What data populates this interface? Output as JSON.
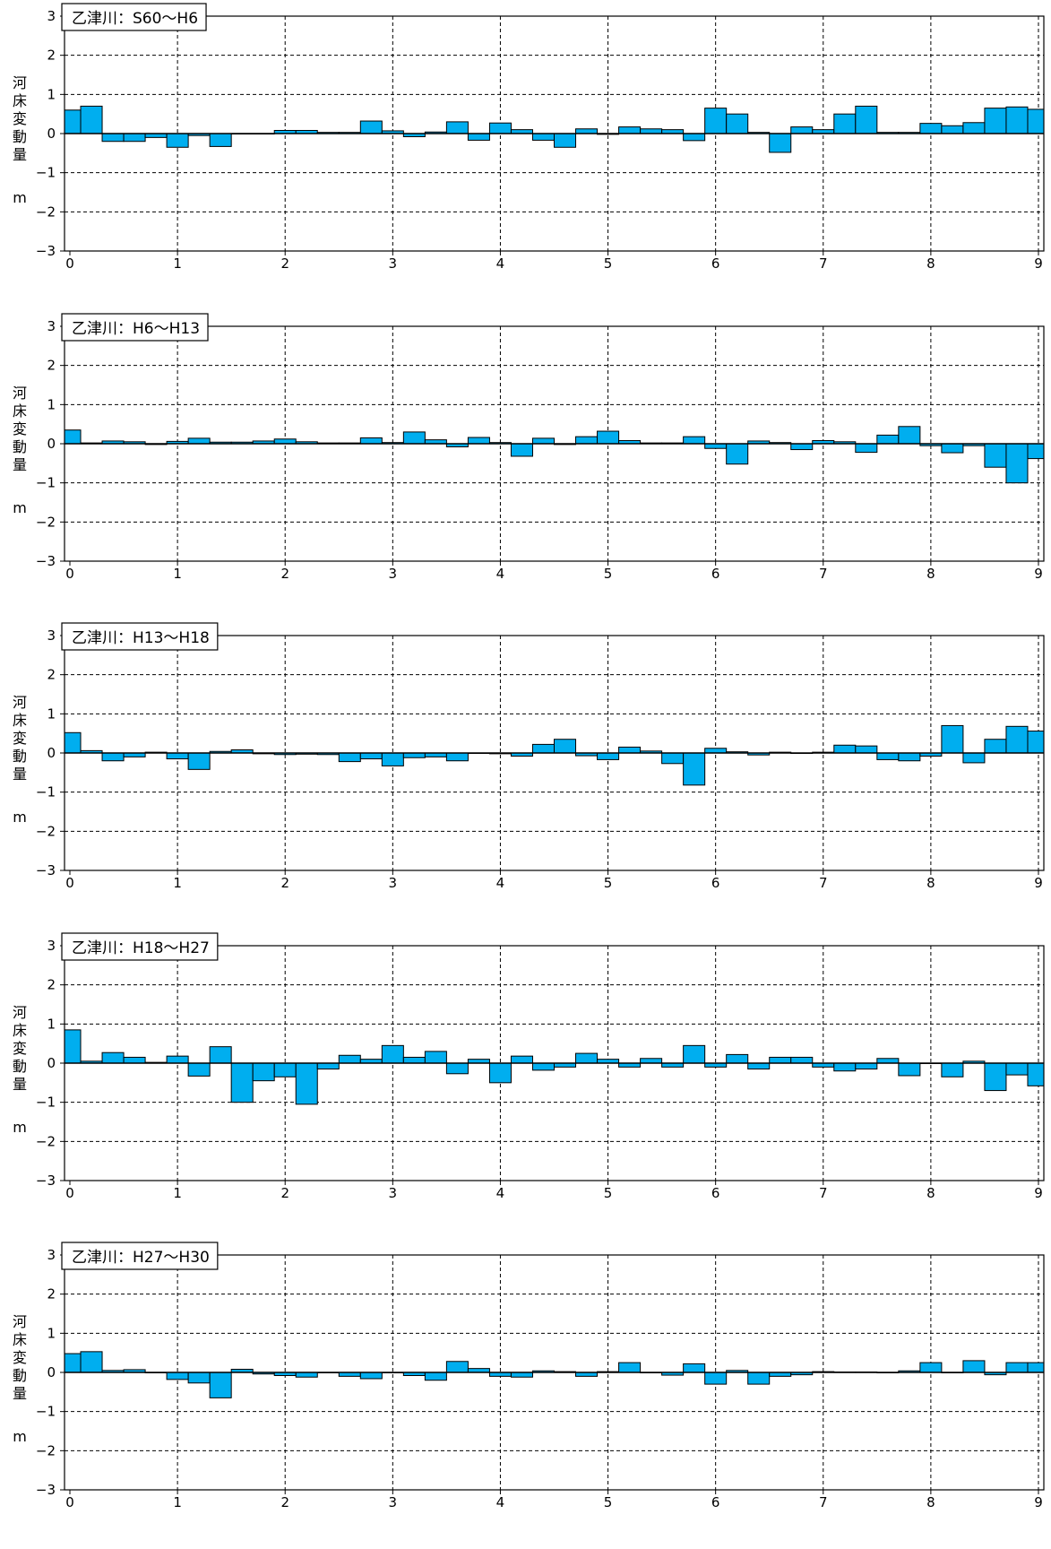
{
  "y_axis_label": "河床変動量",
  "y_axis_unit": "m",
  "colors": {
    "bar_fill": "#00AEEF",
    "bar_stroke": "#000000",
    "grid": "#000000"
  },
  "chart_data": [
    {
      "type": "bar",
      "title": "乙津川：S60～H6",
      "x_ticks": [
        "0",
        "1",
        "2",
        "3",
        "4",
        "5",
        "6",
        "7",
        "8",
        "9"
      ],
      "y_ticks": [
        "3",
        "2",
        "1",
        "0",
        "−1",
        "−2",
        "−3"
      ],
      "xlim": [
        -0.05,
        9.05
      ],
      "ylim": [
        -3,
        3
      ],
      "bar_width": 0.2,
      "x": [
        0.0,
        0.2,
        0.4,
        0.6,
        0.8,
        1.0,
        1.2,
        1.4,
        1.6,
        1.8,
        2.0,
        2.2,
        2.4,
        2.6,
        2.8,
        3.0,
        3.2,
        3.4,
        3.6,
        3.8,
        4.0,
        4.2,
        4.4,
        4.6,
        4.8,
        5.0,
        5.2,
        5.4,
        5.6,
        5.8,
        6.0,
        6.2,
        6.4,
        6.6,
        6.8,
        7.0,
        7.2,
        7.4,
        7.6,
        7.8,
        8.0,
        8.2,
        8.4,
        8.6,
        8.8,
        9.0
      ],
      "values": [
        0.6,
        0.7,
        -0.2,
        -0.2,
        -0.1,
        -0.35,
        -0.05,
        -0.33,
        0,
        0,
        0.08,
        0.08,
        0.03,
        0.03,
        0.32,
        0.07,
        -0.08,
        0.04,
        0.3,
        -0.17,
        0.27,
        0.1,
        -0.17,
        -0.35,
        0.12,
        -0.02,
        0.17,
        0.12,
        0.1,
        -0.18,
        0.65,
        0.5,
        0.03,
        -0.48,
        0.17,
        0.1,
        0.5,
        0.7,
        0.03,
        0.03,
        0.26,
        0.2,
        0.28,
        0.65,
        0.68,
        0.62
      ],
      "grid": true
    },
    {
      "type": "bar",
      "title": "乙津川：H6～H13",
      "x_ticks": [
        "0",
        "1",
        "2",
        "3",
        "4",
        "5",
        "6",
        "7",
        "8",
        "9"
      ],
      "y_ticks": [
        "3",
        "2",
        "1",
        "0",
        "−1",
        "−2",
        "−3"
      ],
      "xlim": [
        -0.05,
        9.05
      ],
      "ylim": [
        -3,
        3
      ],
      "bar_width": 0.2,
      "x": [
        0.0,
        0.2,
        0.4,
        0.6,
        0.8,
        1.0,
        1.2,
        1.4,
        1.6,
        1.8,
        2.0,
        2.2,
        2.4,
        2.6,
        2.8,
        3.0,
        3.2,
        3.4,
        3.6,
        3.8,
        4.0,
        4.2,
        4.4,
        4.6,
        4.8,
        5.0,
        5.2,
        5.4,
        5.6,
        5.8,
        6.0,
        6.2,
        6.4,
        6.6,
        6.8,
        7.0,
        7.2,
        7.4,
        7.6,
        7.8,
        8.0,
        8.2,
        8.4,
        8.6,
        8.8,
        9.0
      ],
      "values": [
        0.35,
        0.02,
        0.07,
        0.05,
        -0.02,
        0.06,
        0.14,
        0.04,
        0.04,
        0.07,
        0.12,
        0.05,
        0.02,
        0.02,
        0.15,
        0.03,
        0.3,
        0.1,
        -0.08,
        0.16,
        0.03,
        -0.32,
        0.14,
        -0.02,
        0.18,
        0.32,
        0.08,
        0.02,
        0.02,
        0.18,
        -0.12,
        -0.52,
        0.07,
        0.03,
        -0.15,
        0.08,
        0.05,
        -0.22,
        0.22,
        0.44,
        -0.05,
        -0.23,
        -0.05,
        -0.6,
        -1.0,
        -0.38
      ],
      "grid": true
    },
    {
      "type": "bar",
      "title": "乙津川：H13～H18",
      "x_ticks": [
        "0",
        "1",
        "2",
        "3",
        "4",
        "5",
        "6",
        "7",
        "8",
        "9"
      ],
      "y_ticks": [
        "3",
        "2",
        "1",
        "0",
        "−1",
        "−2",
        "−3"
      ],
      "xlim": [
        -0.05,
        9.05
      ],
      "ylim": [
        -3,
        3
      ],
      "bar_width": 0.2,
      "x": [
        0.0,
        0.2,
        0.4,
        0.6,
        0.8,
        1.0,
        1.2,
        1.4,
        1.6,
        1.8,
        2.0,
        2.2,
        2.4,
        2.6,
        2.8,
        3.0,
        3.2,
        3.4,
        3.6,
        3.8,
        4.0,
        4.2,
        4.4,
        4.6,
        4.8,
        5.0,
        5.2,
        5.4,
        5.6,
        5.8,
        6.0,
        6.2,
        6.4,
        6.6,
        6.8,
        7.0,
        7.2,
        7.4,
        7.6,
        7.8,
        8.0,
        8.2,
        8.4,
        8.6,
        8.8,
        9.0
      ],
      "values": [
        0.52,
        0.06,
        -0.2,
        -0.1,
        0.02,
        -0.15,
        -0.42,
        0.04,
        0.08,
        -0.02,
        -0.04,
        -0.03,
        -0.04,
        -0.22,
        -0.15,
        -0.33,
        -0.12,
        -0.1,
        -0.2,
        0,
        -0.02,
        -0.08,
        0.22,
        0.35,
        -0.07,
        -0.17,
        0.15,
        0.05,
        -0.27,
        -0.82,
        0.12,
        0.03,
        -0.05,
        0.02,
        -0.01,
        0.02,
        0.2,
        0.18,
        -0.17,
        -0.2,
        -0.08,
        0.7,
        -0.25,
        0.35,
        0.68,
        0.56
      ],
      "grid": true
    },
    {
      "type": "bar",
      "title": "乙津川：H18～H27",
      "x_ticks": [
        "0",
        "1",
        "2",
        "3",
        "4",
        "5",
        "6",
        "7",
        "8",
        "9"
      ],
      "y_ticks": [
        "3",
        "2",
        "1",
        "0",
        "−1",
        "−2",
        "−3"
      ],
      "xlim": [
        -0.05,
        9.05
      ],
      "ylim": [
        -3,
        3
      ],
      "bar_width": 0.2,
      "x": [
        0.0,
        0.2,
        0.4,
        0.6,
        0.8,
        1.0,
        1.2,
        1.4,
        1.6,
        1.8,
        2.0,
        2.2,
        2.4,
        2.6,
        2.8,
        3.0,
        3.2,
        3.4,
        3.6,
        3.8,
        4.0,
        4.2,
        4.4,
        4.6,
        4.8,
        5.0,
        5.2,
        5.4,
        5.6,
        5.8,
        6.0,
        6.2,
        6.4,
        6.6,
        6.8,
        7.0,
        7.2,
        7.4,
        7.6,
        7.8,
        8.0,
        8.2,
        8.4,
        8.6,
        8.8,
        9.0
      ],
      "values": [
        0.85,
        0.05,
        0.27,
        0.15,
        0.02,
        0.18,
        -0.33,
        0.42,
        -1.0,
        -0.45,
        -0.35,
        -1.05,
        -0.15,
        0.2,
        0.1,
        0.45,
        0.15,
        0.3,
        -0.27,
        0.1,
        -0.5,
        0.18,
        -0.18,
        -0.1,
        0.25,
        0.1,
        -0.1,
        0.12,
        -0.1,
        0.45,
        -0.1,
        0.22,
        -0.15,
        0.15,
        0.15,
        -0.1,
        -0.2,
        -0.15,
        0.12,
        -0.32,
        0,
        -0.35,
        0.05,
        -0.7,
        -0.3,
        -0.58
      ],
      "grid": true
    },
    {
      "type": "bar",
      "title": "乙津川：H27～H30",
      "x_ticks": [
        "0",
        "1",
        "2",
        "3",
        "4",
        "5",
        "6",
        "7",
        "8",
        "9"
      ],
      "y_ticks": [
        "3",
        "2",
        "1",
        "0",
        "−1",
        "−2",
        "−3"
      ],
      "xlim": [
        -0.05,
        9.05
      ],
      "ylim": [
        -3,
        3
      ],
      "bar_width": 0.2,
      "x": [
        0.0,
        0.2,
        0.4,
        0.6,
        0.8,
        1.0,
        1.2,
        1.4,
        1.6,
        1.8,
        2.0,
        2.2,
        2.4,
        2.6,
        2.8,
        3.0,
        3.2,
        3.4,
        3.6,
        3.8,
        4.0,
        4.2,
        4.4,
        4.6,
        4.8,
        5.0,
        5.2,
        5.4,
        5.6,
        5.8,
        6.0,
        6.2,
        6.4,
        6.6,
        6.8,
        7.0,
        7.2,
        7.4,
        7.6,
        7.8,
        8.0,
        8.2,
        8.4,
        8.6,
        8.8,
        9.0
      ],
      "values": [
        0.48,
        0.53,
        0.05,
        0.07,
        0,
        -0.18,
        -0.27,
        -0.65,
        0.08,
        -0.04,
        -0.08,
        -0.12,
        0,
        -0.1,
        -0.16,
        0,
        -0.08,
        -0.2,
        0.28,
        0.1,
        -0.1,
        -0.12,
        0.04,
        0.02,
        -0.1,
        0.02,
        0.25,
        0,
        -0.07,
        0.22,
        -0.3,
        0.05,
        -0.3,
        -0.1,
        -0.06,
        0.02,
        0.01,
        0.01,
        0,
        0.04,
        0.25,
        0,
        0.3,
        -0.06,
        0.25,
        0.25
      ],
      "grid": true
    }
  ]
}
